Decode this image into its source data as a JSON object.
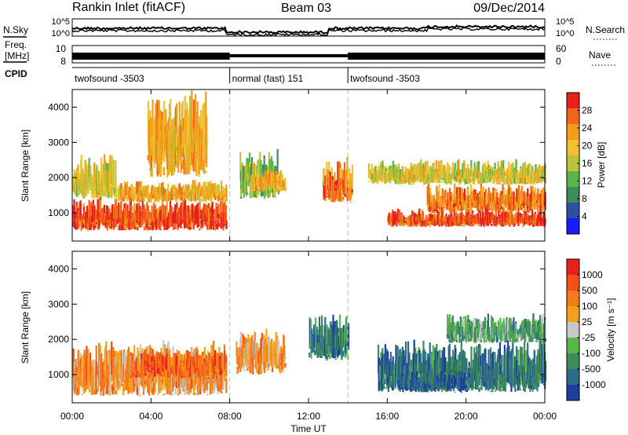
{
  "header": {
    "station": "Rankin Inlet (fitACF)",
    "beam": "Beam 03",
    "date": "09/Dec/2014"
  },
  "top_panels": {
    "nsky_label": "N.Sky",
    "nsky_ticks": [
      "10^5",
      "10^0"
    ],
    "nsearch_label": "N.Search",
    "nsearch_ticks": [
      "10^5",
      "10^0"
    ],
    "freq_label_1": "Freq.",
    "freq_label_2": "[MHz]",
    "freq_ticks": [
      "10",
      "8"
    ],
    "nave_label": "Nave",
    "nave_ticks": [
      "60",
      "0"
    ],
    "cpid_label": "CPID",
    "cpid_segments": [
      {
        "label": "twofsound -3503",
        "start": 0,
        "end": 8
      },
      {
        "label": "normal (fast) 151",
        "start": 8,
        "end": 14
      },
      {
        "label": "twofsound -3503",
        "start": 14,
        "end": 24
      }
    ]
  },
  "chart_data": [
    {
      "type": "heatmap",
      "title": "",
      "quantity": "Power",
      "colorbar_label": "Power [dB]",
      "colorbar_ticks": [
        "28",
        "24",
        "20",
        "16",
        "12",
        "8",
        "4"
      ],
      "colors": [
        "#1a1aff",
        "#2e4fa0",
        "#3d8a5a",
        "#5ab54a",
        "#b9c43a",
        "#f2c12e",
        "#f59b1a",
        "#f5641a",
        "#e8201a"
      ],
      "ylabel": "Slant Range [km]",
      "yticks": [
        "4000",
        "3000",
        "2000",
        "1000"
      ],
      "ylim": [
        200,
        4500
      ],
      "xlim": [
        0,
        24
      ],
      "regions": [
        {
          "x": [
            0.0,
            7.8
          ],
          "y": [
            500,
            1400
          ],
          "value": 28
        },
        {
          "x": [
            2.3,
            7.8
          ],
          "y": [
            1300,
            1900
          ],
          "value": 20
        },
        {
          "x": [
            0.0,
            2.2
          ],
          "y": [
            1400,
            2600
          ],
          "value": 16
        },
        {
          "x": [
            3.8,
            6.8
          ],
          "y": [
            2000,
            4400
          ],
          "value": 20
        },
        {
          "x": [
            8.5,
            10.5
          ],
          "y": [
            1400,
            2700
          ],
          "value": 12
        },
        {
          "x": [
            9.0,
            10.8
          ],
          "y": [
            1600,
            2200
          ],
          "value": 20
        },
        {
          "x": [
            12.7,
            14.2
          ],
          "y": [
            1300,
            2500
          ],
          "value": 24
        },
        {
          "x": [
            16.0,
            24.0
          ],
          "y": [
            600,
            1100
          ],
          "value": 28
        },
        {
          "x": [
            18.0,
            24.0
          ],
          "y": [
            1000,
            1800
          ],
          "value": 24
        },
        {
          "x": [
            15.0,
            24.0
          ],
          "y": [
            1800,
            2500
          ],
          "value": 16
        }
      ]
    },
    {
      "type": "heatmap",
      "title": "",
      "quantity": "Velocity",
      "colorbar_label": "Velocity [m s⁻¹]",
      "colorbar_ticks": [
        "1000",
        "500",
        "100",
        "25",
        "-25",
        "-100",
        "-500",
        "-1000"
      ],
      "colors": [
        "#1a3fa0",
        "#2e6a8a",
        "#3d8a5a",
        "#5ab54a",
        "#c8c8c8",
        "#f5a01a",
        "#f57a1a",
        "#f5501a",
        "#e8201a"
      ],
      "ylabel": "Slant Range [km]",
      "yticks": [
        "4000",
        "3000",
        "2000",
        "1000"
      ],
      "ylim": [
        200,
        4500
      ],
      "xlim": [
        0,
        24
      ],
      "regions": [
        {
          "x": [
            0.0,
            7.8
          ],
          "y": [
            400,
            1900
          ],
          "value": 100
        },
        {
          "x": [
            3.0,
            7.8
          ],
          "y": [
            900,
            1700
          ],
          "value": 500
        },
        {
          "x": [
            8.3,
            10.8
          ],
          "y": [
            1000,
            2300
          ],
          "value": 100
        },
        {
          "x": [
            12.0,
            14.0
          ],
          "y": [
            1400,
            2700
          ],
          "value": -500
        },
        {
          "x": [
            15.5,
            24.0
          ],
          "y": [
            500,
            1900
          ],
          "value": -500
        },
        {
          "x": [
            16.5,
            20.0
          ],
          "y": [
            500,
            1100
          ],
          "value": -1000
        },
        {
          "x": [
            19.0,
            24.0
          ],
          "y": [
            1900,
            2700
          ],
          "value": -100
        }
      ]
    }
  ],
  "xaxis": {
    "label": "Time UT",
    "ticks": [
      "00:00",
      "04:00",
      "08:00",
      "12:00",
      "16:00",
      "20:00",
      "00:00"
    ]
  }
}
